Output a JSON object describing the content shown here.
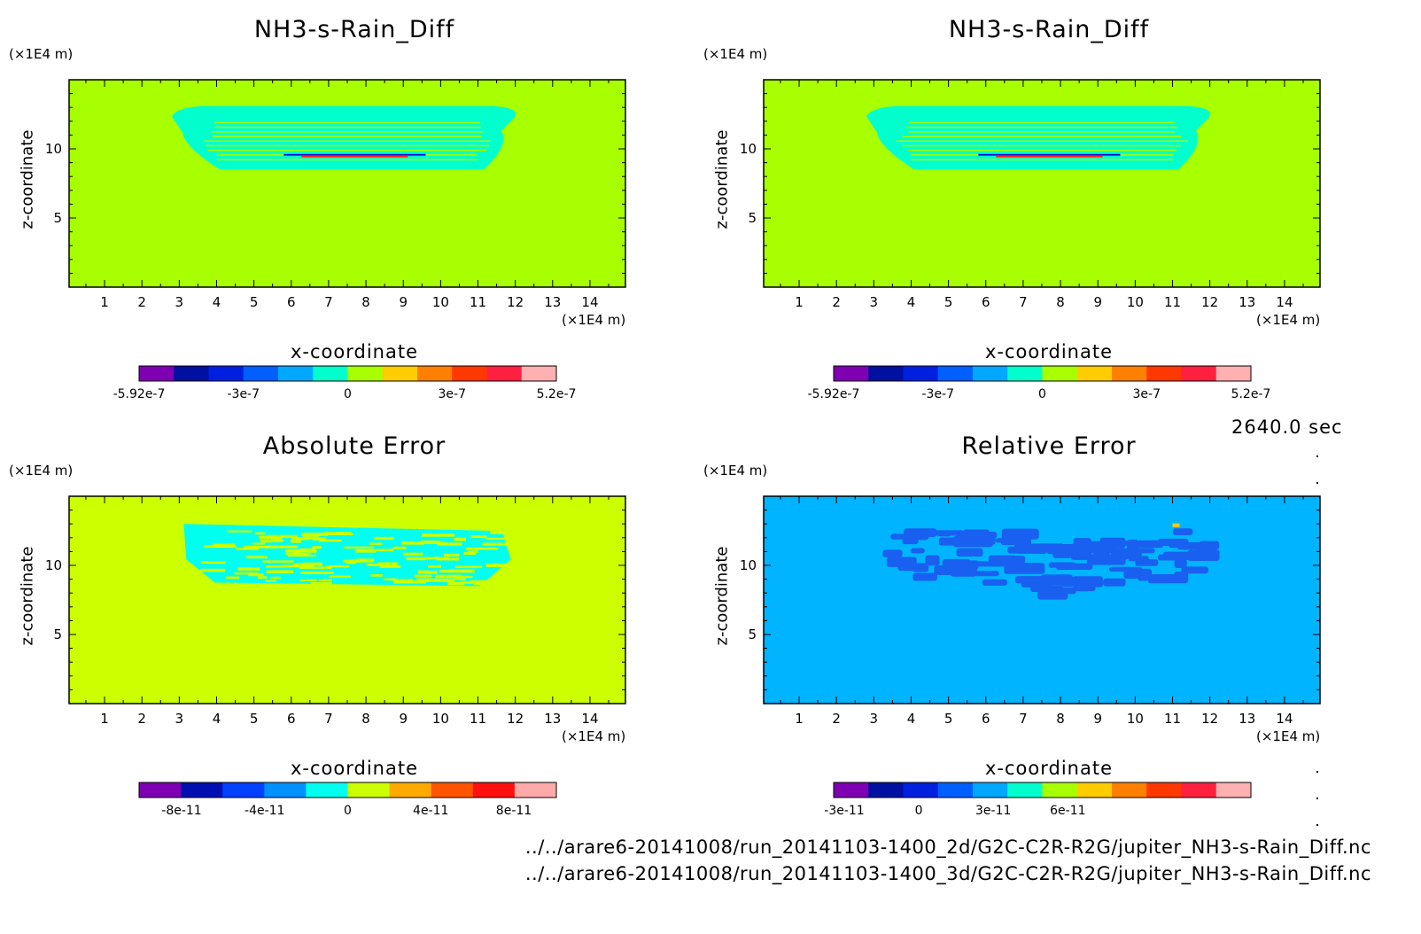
{
  "time_label": "2640.0 sec",
  "files": [
    "../../arare6-20141008/run_20141103-1400_2d/G2C-C2R-R2G/jupiter_NH3-s-Rain_Diff.nc",
    "../../arare6-20141008/run_20141103-1400_3d/G2C-C2R-R2G/jupiter_NH3-s-Rain_Diff.nc"
  ],
  "chart_data": [
    {
      "type": "heatmap",
      "title": "NH3-s-Rain_Diff",
      "xlabel": "x-coordinate",
      "ylabel": "z-coordinate",
      "x_unit": "(×1E4 m)",
      "y_unit": "(×1E4 m)",
      "x_ticks": [
        "1",
        "2",
        "3",
        "4",
        "5",
        "6",
        "7",
        "8",
        "9",
        "10",
        "11",
        "12",
        "13",
        "14"
      ],
      "y_ticks": [
        "5",
        "10"
      ],
      "xlim": [
        0.05,
        14.95
      ],
      "ylim": [
        0,
        15
      ],
      "background_color": "#a8ff00",
      "feature": {
        "color": "#00ffcc",
        "x_range": [
          2.9,
          12.1
        ],
        "z_range": [
          8.5,
          13.1
        ],
        "pattern": "striped"
      },
      "line_feature": {
        "z": 9.5,
        "x_range": [
          5.8,
          9.6
        ],
        "colors": [
          "#0000cc",
          "#ff2020"
        ]
      },
      "colorbar": {
        "colors": [
          "#7e00b2",
          "#0010a0",
          "#0020e0",
          "#0060ff",
          "#00a8ff",
          "#00ffcc",
          "#a8ff00",
          "#ffcc00",
          "#ff8000",
          "#ff3800",
          "#ff2040",
          "#ffb0b0"
        ],
        "tick_labels": [
          "-5.92e-7",
          "-3e-7",
          "0",
          "3e-7",
          "5.2e-7"
        ]
      }
    },
    {
      "type": "heatmap",
      "title": "NH3-s-Rain_Diff",
      "xlabel": "x-coordinate",
      "ylabel": "z-coordinate",
      "x_unit": "(×1E4 m)",
      "y_unit": "(×1E4 m)",
      "x_ticks": [
        "1",
        "2",
        "3",
        "4",
        "5",
        "6",
        "7",
        "8",
        "9",
        "10",
        "11",
        "12",
        "13",
        "14"
      ],
      "y_ticks": [
        "5",
        "10"
      ],
      "xlim": [
        0.05,
        14.95
      ],
      "ylim": [
        0,
        15
      ],
      "background_color": "#a8ff00",
      "feature": {
        "color": "#00ffcc",
        "x_range": [
          2.9,
          12.1
        ],
        "z_range": [
          8.5,
          13.1
        ],
        "pattern": "striped"
      },
      "line_feature": {
        "z": 9.5,
        "x_range": [
          5.8,
          9.6
        ],
        "colors": [
          "#0000cc",
          "#ff2020"
        ]
      },
      "colorbar": {
        "colors": [
          "#7e00b2",
          "#0010a0",
          "#0020e0",
          "#0060ff",
          "#00a8ff",
          "#00ffcc",
          "#a8ff00",
          "#ffcc00",
          "#ff8000",
          "#ff3800",
          "#ff2040",
          "#ffb0b0"
        ],
        "tick_labels": [
          "-5.92e-7",
          "-3e-7",
          "0",
          "3e-7",
          "5.2e-7"
        ]
      }
    },
    {
      "type": "heatmap",
      "title": "Absolute Error",
      "xlabel": "x-coordinate",
      "ylabel": "z-coordinate",
      "x_unit": "(×1E4 m)",
      "y_unit": "(×1E4 m)",
      "x_ticks": [
        "1",
        "2",
        "3",
        "4",
        "5",
        "6",
        "7",
        "8",
        "9",
        "10",
        "11",
        "12",
        "13",
        "14"
      ],
      "y_ticks": [
        "5",
        "10"
      ],
      "xlim": [
        0.05,
        14.95
      ],
      "ylim": [
        0,
        15
      ],
      "background_color": "#ccff00",
      "feature": {
        "color": "#00ffee",
        "x_range": [
          3.0,
          12.0
        ],
        "z_range": [
          8.5,
          13.0
        ],
        "pattern": "noisy"
      },
      "colorbar": {
        "colors": [
          "#7e00b2",
          "#0010b0",
          "#0040ff",
          "#0090ff",
          "#00ffee",
          "#ccff00",
          "#ffaa00",
          "#ff5500",
          "#ff1010",
          "#ffaaaa"
        ],
        "tick_labels": [
          "-8e-11",
          "-4e-11",
          "0",
          "4e-11",
          "8e-11"
        ]
      }
    },
    {
      "type": "heatmap",
      "title": "Relative Error",
      "xlabel": "x-coordinate",
      "ylabel": "z-coordinate",
      "x_unit": "(×1E4 m)",
      "y_unit": "(×1E4 m)",
      "x_ticks": [
        "1",
        "2",
        "3",
        "4",
        "5",
        "6",
        "7",
        "8",
        "9",
        "10",
        "11",
        "12",
        "13",
        "14"
      ],
      "y_ticks": [
        "5",
        "10"
      ],
      "xlim": [
        0.05,
        14.95
      ],
      "ylim": [
        0,
        15
      ],
      "background_color": "#00b4ff",
      "feature": {
        "color": "#1a60f0",
        "x_range": [
          2.9,
          12.0
        ],
        "z_range": [
          8.5,
          13.2
        ],
        "pattern": "blobs"
      },
      "colorbar": {
        "colors": [
          "#7e00b2",
          "#0010a0",
          "#0020e0",
          "#0060ff",
          "#00a8ff",
          "#00ffcc",
          "#a8ff00",
          "#ffcc00",
          "#ff8000",
          "#ff3800",
          "#ff2040",
          "#ffb0b0"
        ],
        "tick_labels": [
          "-3e-11",
          "0",
          "3e-11",
          "6e-11"
        ]
      }
    }
  ]
}
